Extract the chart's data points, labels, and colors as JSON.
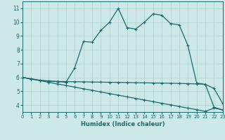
{
  "xlabel": "Humidex (Indice chaleur)",
  "ylabel": "",
  "bg_color": "#cce8e8",
  "line_color": "#1a6b6b",
  "grid_color": "#afd0d0",
  "x_values": [
    0,
    1,
    2,
    3,
    4,
    5,
    6,
    7,
    8,
    9,
    10,
    11,
    12,
    13,
    14,
    15,
    16,
    17,
    18,
    19,
    20,
    21,
    22,
    23
  ],
  "curve1": [
    6.0,
    5.9,
    5.8,
    5.75,
    5.7,
    5.65,
    6.7,
    8.6,
    8.55,
    9.4,
    10.0,
    11.0,
    9.6,
    9.5,
    10.0,
    10.6,
    10.5,
    9.9,
    9.8,
    8.3,
    5.6,
    5.5,
    5.2,
    4.1
  ],
  "curve2": [
    6.0,
    5.9,
    5.78,
    5.73,
    5.71,
    5.7,
    5.69,
    5.68,
    5.67,
    5.66,
    5.65,
    5.64,
    5.63,
    5.62,
    5.61,
    5.6,
    5.59,
    5.58,
    5.57,
    5.55,
    5.53,
    5.5,
    3.85,
    3.65
  ],
  "curve3": [
    6.0,
    5.88,
    5.77,
    5.65,
    5.53,
    5.42,
    5.3,
    5.18,
    5.07,
    4.95,
    4.83,
    4.72,
    4.6,
    4.48,
    4.37,
    4.25,
    4.13,
    4.02,
    3.9,
    3.78,
    3.67,
    3.55,
    3.78,
    3.65
  ],
  "xlim": [
    0,
    23
  ],
  "ylim": [
    3.5,
    11.5
  ],
  "yticks": [
    4,
    5,
    6,
    7,
    8,
    9,
    10,
    11
  ],
  "xticks": [
    0,
    1,
    2,
    3,
    4,
    5,
    6,
    7,
    8,
    9,
    10,
    11,
    12,
    13,
    14,
    15,
    16,
    17,
    18,
    19,
    20,
    21,
    22,
    23
  ]
}
